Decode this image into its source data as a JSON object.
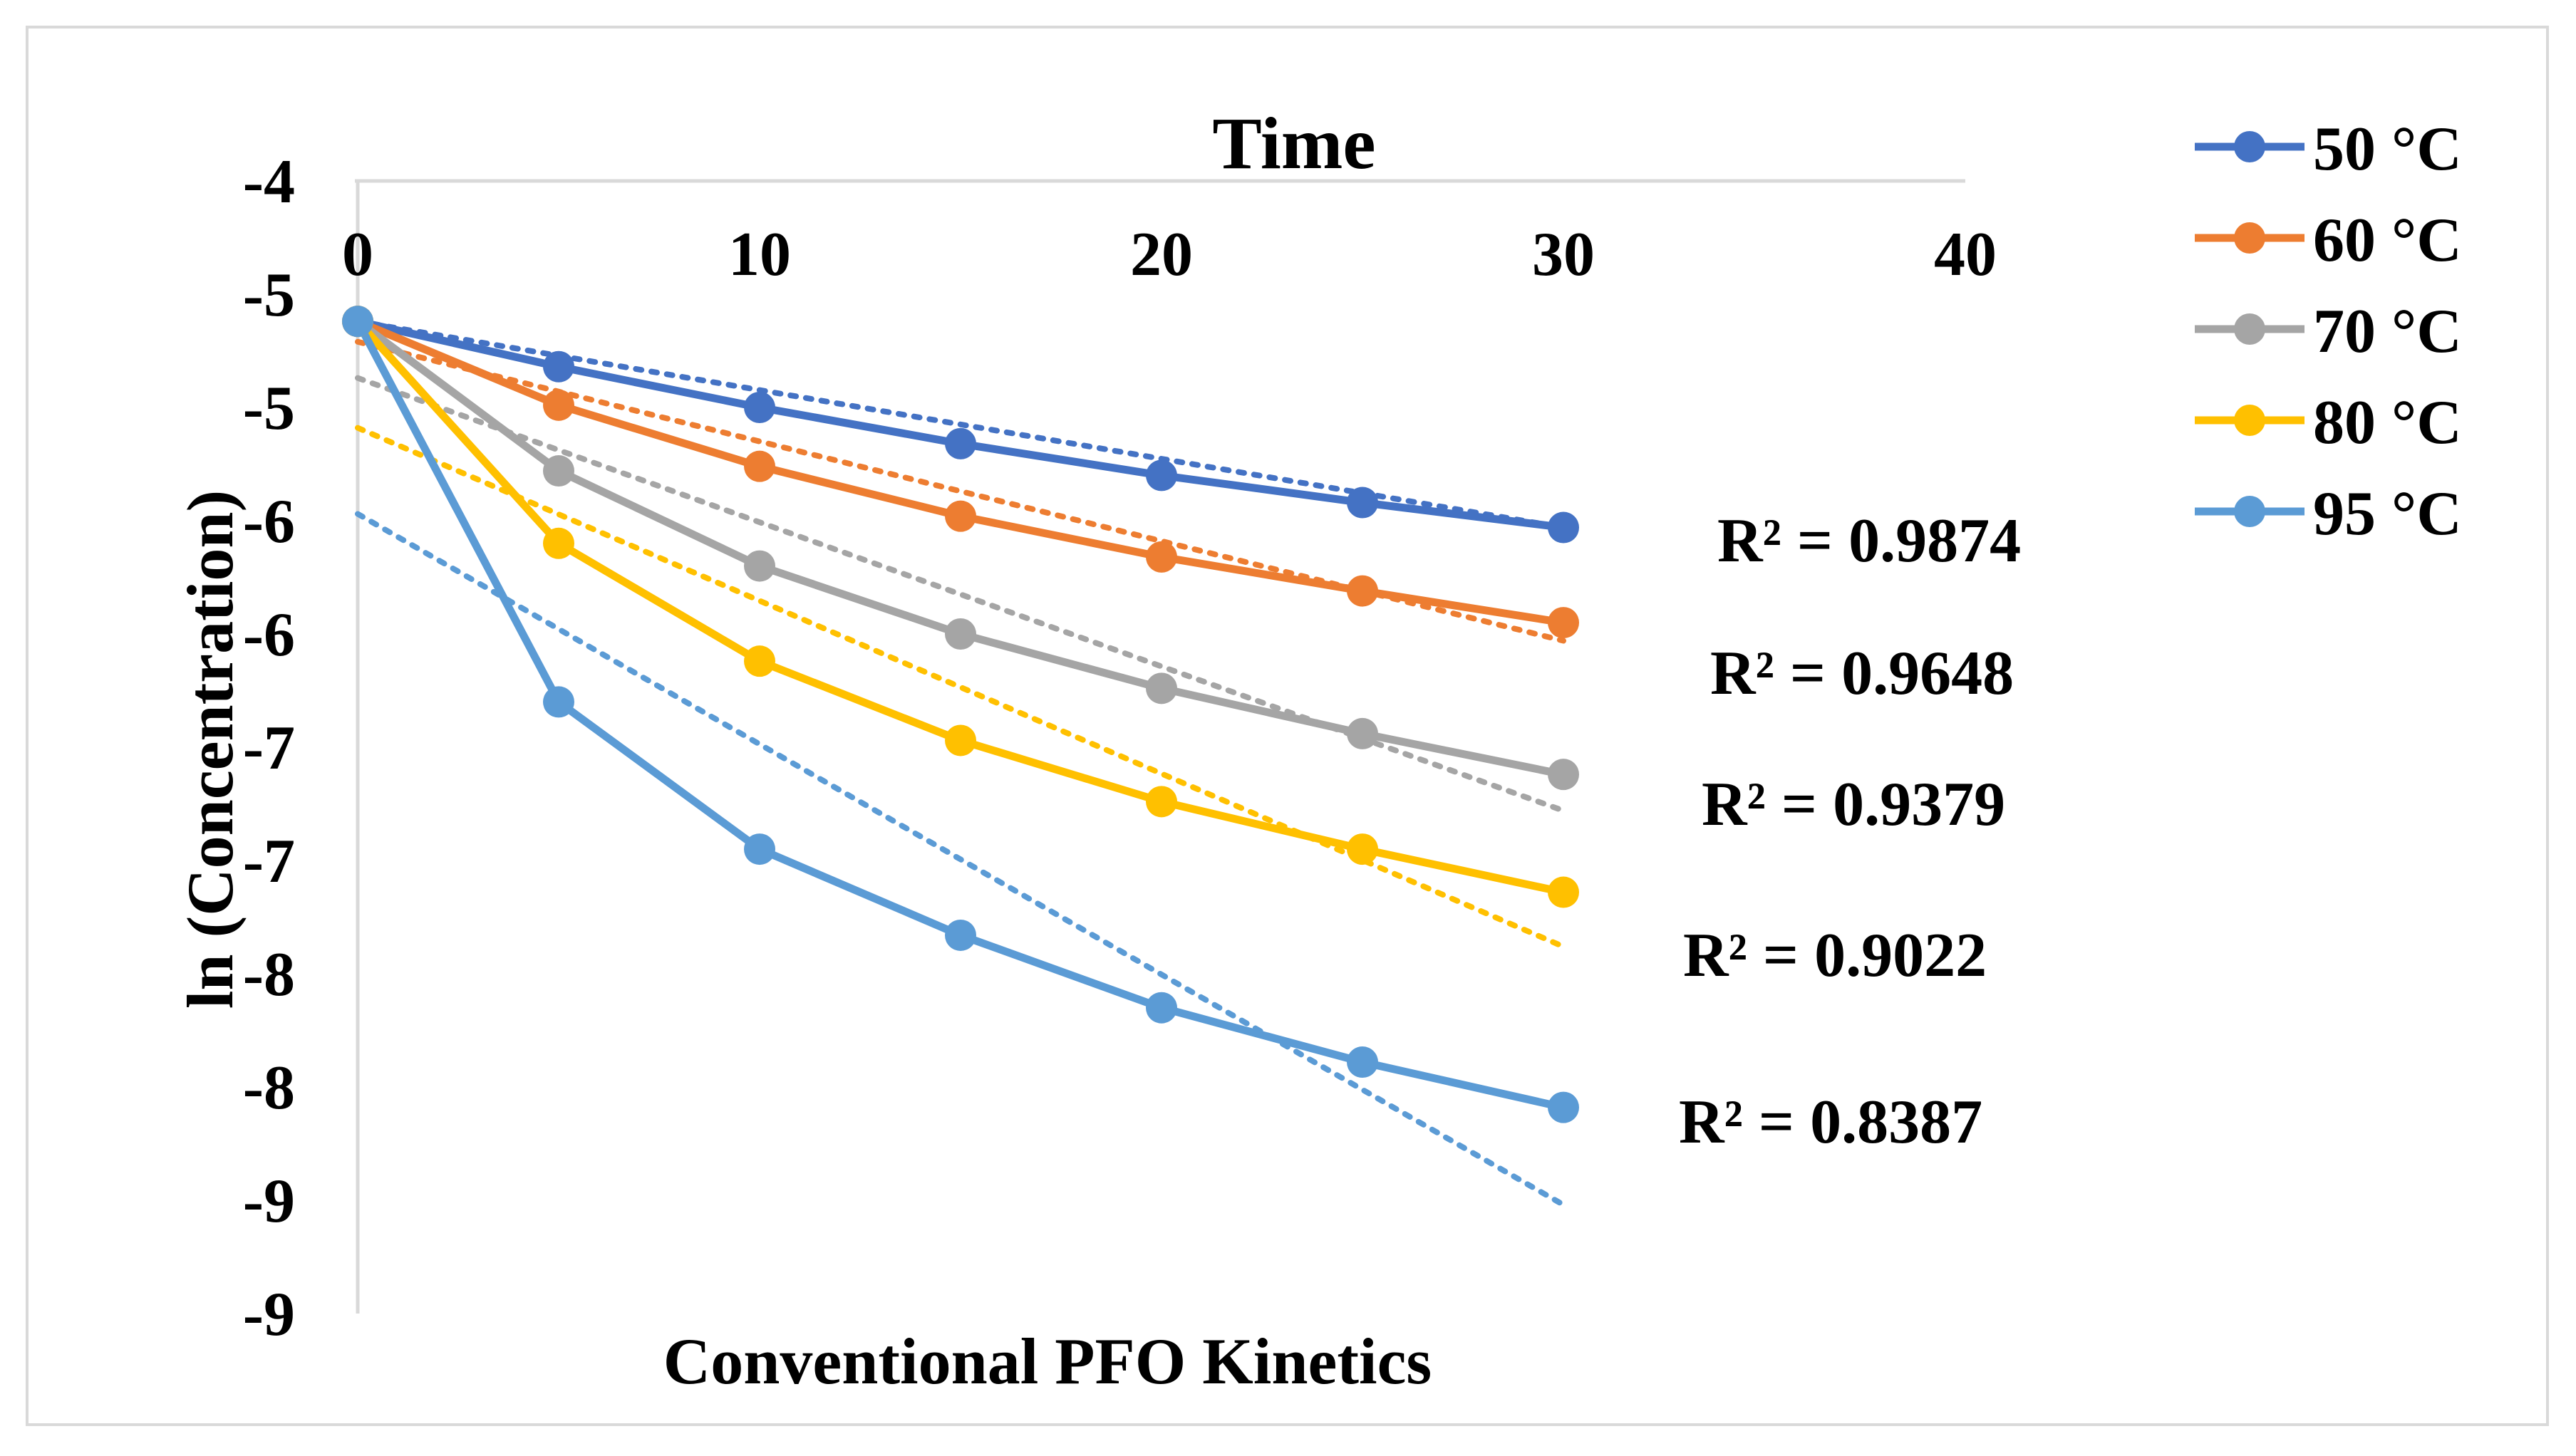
{
  "chart_data": {
    "type": "line",
    "title": "Time",
    "xlabel": "Conventional PFO Kinetics",
    "ylabel": "ln (Concentration)",
    "x": [
      0,
      5,
      10,
      15,
      20,
      25,
      30
    ],
    "xlim": [
      0,
      40
    ],
    "ylim": [
      -9,
      -4
    ],
    "x_ticks": [
      0,
      10,
      20,
      30,
      40
    ],
    "x_tick_labels": [
      "0",
      "10",
      "20",
      "30",
      "40"
    ],
    "y_ticks": [
      -4,
      -4.5,
      -5,
      -5.5,
      -6,
      -6.5,
      -7,
      -7.5,
      -8,
      -8.5,
      -9
    ],
    "y_tick_labels": [
      "-4",
      "-5",
      "-5",
      "-6",
      "-6",
      "-7",
      "-7",
      "-8",
      "-8",
      "-9",
      "-9"
    ],
    "grid": false,
    "legend_position": "right",
    "series": [
      {
        "name": "50 °C",
        "color": "#4472C4",
        "values": [
          -4.62,
          -4.82,
          -5.0,
          -5.16,
          -5.3,
          -5.42,
          -5.53
        ],
        "trend": {
          "start": -4.62,
          "end": -5.53
        },
        "r_squared": "R² = 0.9874"
      },
      {
        "name": "60 °C",
        "color": "#ED7D31",
        "values": [
          -4.62,
          -4.99,
          -5.26,
          -5.48,
          -5.66,
          -5.81,
          -5.95
        ],
        "trend": {
          "start": -4.71,
          "end": -6.03
        },
        "r_squared": "R² = 0.9648"
      },
      {
        "name": "70 °C",
        "color": "#A5A5A5",
        "values": [
          -4.62,
          -5.28,
          -5.7,
          -6.0,
          -6.24,
          -6.44,
          -6.62
        ],
        "trend": {
          "start": -4.87,
          "end": -6.78
        },
        "r_squared": "R² = 0.9379"
      },
      {
        "name": "80 °C",
        "color": "#FFC000",
        "values": [
          -4.62,
          -5.6,
          -6.12,
          -6.47,
          -6.74,
          -6.95,
          -7.14
        ],
        "trend": {
          "start": -5.09,
          "end": -7.38
        },
        "r_squared": "R² = 0.9022"
      },
      {
        "name": "95 °C",
        "color": "#5B9BD5",
        "values": [
          -4.62,
          -6.3,
          -6.95,
          -7.33,
          -7.65,
          -7.89,
          -8.09
        ],
        "trend": {
          "start": -5.47,
          "end": -8.52
        },
        "r_squared": "R² = 0.8387"
      }
    ]
  }
}
